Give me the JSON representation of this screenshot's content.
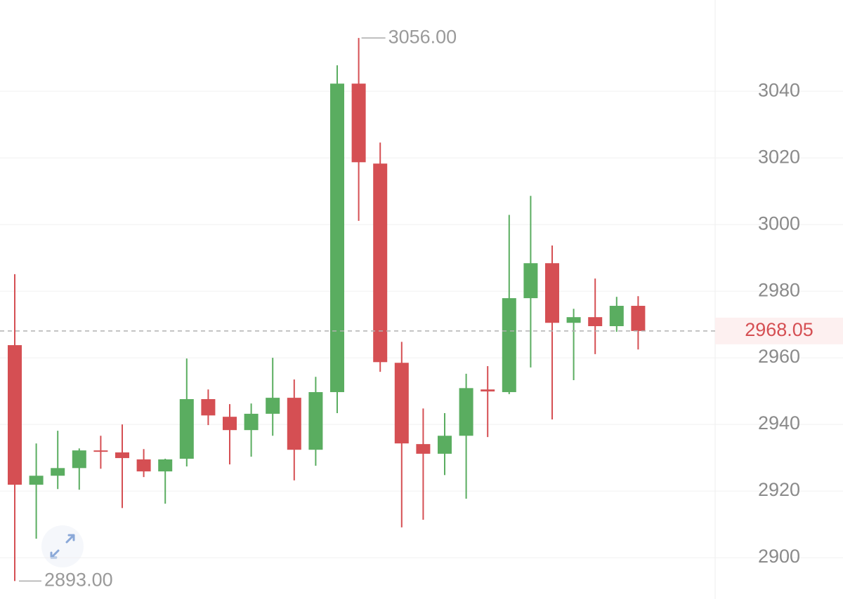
{
  "chart_data": {
    "type": "candlestick",
    "up_color": "#5aad60",
    "down_color": "#d54f53",
    "ylim": [
      2887.6,
      3067.4
    ],
    "yticks": [
      2900,
      2920,
      2940,
      2960,
      2980,
      3000,
      3020,
      3040
    ],
    "grid": true,
    "open": [
      2963.8,
      2921.9,
      2924.6,
      2926.9,
      2932.2,
      2931.6,
      2929.5,
      2925.9,
      2929.7,
      2947.6,
      2942.3,
      2938.3,
      2943.2,
      2948.0,
      2932.4,
      2949.7,
      3042.3,
      3018.3,
      2958.5,
      2934.1,
      2931.2,
      2936.6,
      2950.5,
      2949.7,
      2977.9,
      2988.4,
      2970.5,
      2972.2,
      2969.5,
      2975.6
    ],
    "high": [
      2985.1,
      2934.3,
      2938.1,
      2932.8,
      2936.6,
      2940.0,
      2932.6,
      2929.7,
      2959.8,
      2950.5,
      2946.1,
      2946.3,
      2960.0,
      2953.5,
      2954.3,
      3047.8,
      3056.0,
      3024.6,
      2964.8,
      2944.8,
      2943.4,
      2955.2,
      2957.5,
      3002.9,
      3008.6,
      2993.7,
      2974.7,
      2983.8,
      2978.3,
      2978.5
    ],
    "low": [
      2893.0,
      2905.7,
      2920.6,
      2920.4,
      2926.7,
      2914.9,
      2924.2,
      2916.2,
      2927.4,
      2939.8,
      2928.0,
      2930.3,
      2936.6,
      2923.2,
      2927.6,
      2943.4,
      3001.1,
      2955.8,
      2909.1,
      2911.4,
      2924.8,
      2917.7,
      2936.2,
      2949.1,
      2957.1,
      2941.5,
      2953.3,
      2961.1,
      2967.8,
      2962.5
    ],
    "close": [
      2921.9,
      2924.6,
      2926.9,
      2932.2,
      2931.8,
      2929.9,
      2925.9,
      2929.5,
      2947.6,
      2942.7,
      2938.3,
      2943.2,
      2948.0,
      2932.4,
      2949.7,
      3042.3,
      3018.7,
      2958.7,
      2934.3,
      2931.2,
      2936.6,
      2950.9,
      2949.9,
      2977.9,
      2988.4,
      2970.5,
      2972.2,
      2969.5,
      2975.6,
      2968.05
    ],
    "max_label": {
      "value": 3056,
      "label": "3056.00"
    },
    "min_label": {
      "value": 2893,
      "label": "2893.00"
    },
    "last_price": {
      "value": 2968.05,
      "label": "2968.05"
    }
  }
}
